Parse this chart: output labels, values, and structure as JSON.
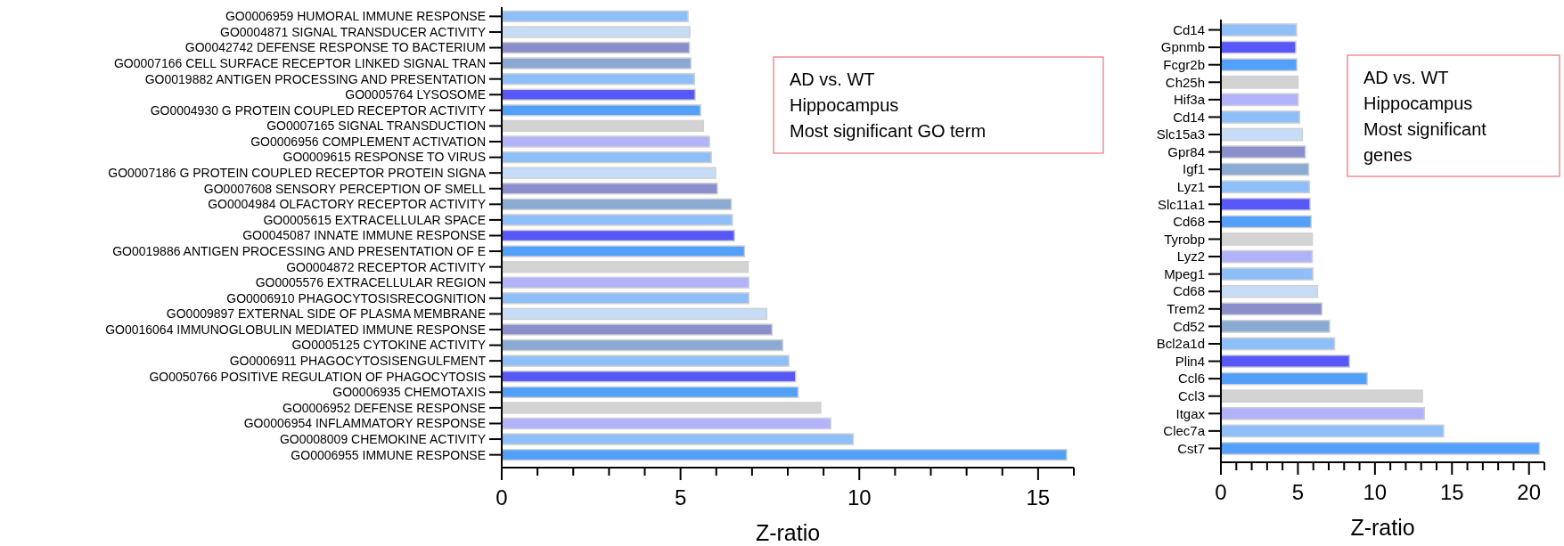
{
  "chart_data": [
    {
      "type": "bar",
      "orientation": "horizontal",
      "xlabel": "Z-ratio",
      "categories": [
        "GO0006959 HUMORAL IMMUNE RESPONSE",
        "GO0004871 SIGNAL TRANSDUCER ACTIVITY",
        "GO0042742 DEFENSE RESPONSE TO BACTERIUM",
        "GO0007166 CELL SURFACE RECEPTOR LINKED SIGNAL TRAN",
        "GO0019882 ANTIGEN PROCESSING AND PRESENTATION",
        "GO0005764 LYSOSOME",
        "GO0004930 G PROTEIN COUPLED RECEPTOR ACTIVITY",
        "GO0007165 SIGNAL TRANSDUCTION",
        "GO0006956 COMPLEMENT ACTIVATION",
        "GO0009615 RESPONSE TO VIRUS",
        "GO0007186 G PROTEIN COUPLED RECEPTOR PROTEIN SIGNA",
        "GO0007608 SENSORY PERCEPTION OF SMELL",
        "GO0004984 OLFACTORY RECEPTOR ACTIVITY",
        "GO0005615 EXTRACELLULAR SPACE",
        "GO0045087 INNATE IMMUNE RESPONSE",
        "GO0019886 ANTIGEN PROCESSING AND PRESENTATION OF E",
        "GO0004872 RECEPTOR ACTIVITY",
        "GO0005576 EXTRACELLULAR REGION",
        "GO0006910 PHAGOCYTOSISRECOGNITION",
        "GO0009897 EXTERNAL SIDE OF PLASMA MEMBRANE",
        "GO0016064 IMMUNOGLOBULIN MEDIATED IMMUNE RESPONSE",
        "GO0005125 CYTOKINE ACTIVITY",
        "GO0006911 PHAGOCYTOSISENGULFMENT",
        "GO0050766 POSITIVE REGULATION OF PHAGOCYTOSIS",
        "GO0006935 CHEMOTAXIS",
        "GO0006952 DEFENSE RESPONSE",
        "GO0006954 INFLAMMATORY RESPONSE",
        "GO0008009 CHEMOKINE ACTIVITY",
        "GO0006955 IMMUNE RESPONSE"
      ],
      "values": [
        5.21,
        5.26,
        5.25,
        5.29,
        5.39,
        5.41,
        5.56,
        5.64,
        5.81,
        5.86,
        5.98,
        6.03,
        6.42,
        6.45,
        6.51,
        6.79,
        6.89,
        6.91,
        6.91,
        7.41,
        7.56,
        7.86,
        8.03,
        8.22,
        8.29,
        8.92,
        9.2,
        9.83,
        15.8
      ],
      "colors": [
        "#8fbff9",
        "#c6dcf7",
        "#8a8fcc",
        "#8aaad4",
        "#8fbff9",
        "#5858f8",
        "#52a0f9",
        "#d3d3d3",
        "#b3b3fc",
        "#8fbff9",
        "#c6dcf7",
        "#8a8fcc",
        "#8aaad4",
        "#8fbff9",
        "#5858f8",
        "#52a0f9",
        "#d3d3d3",
        "#b3b3fc",
        "#8fbff9",
        "#c6dcf7",
        "#8a8fcc",
        "#8aaad4",
        "#8fbff9",
        "#5858f8",
        "#52a0f9",
        "#d3d3d3",
        "#b3b3fc",
        "#8fbff9",
        "#52a0f9"
      ],
      "xlim": [
        0,
        16
      ],
      "xticks": [
        0,
        {
          "value": 1,
          "label": null
        },
        {
          "value": 2,
          "label": null
        },
        {
          "value": 3,
          "label": null
        },
        {
          "value": 4,
          "label": null
        },
        5,
        {
          "value": 6,
          "label": null
        },
        {
          "value": 7,
          "label": null
        },
        {
          "value": 8,
          "label": null
        },
        {
          "value": 9,
          "label": null
        },
        10,
        {
          "value": 11,
          "label": null
        },
        {
          "value": 12,
          "label": null
        },
        {
          "value": 13,
          "label": null
        },
        {
          "value": 14,
          "label": null
        },
        15,
        {
          "value": 16,
          "label": null
        }
      ],
      "grid": false,
      "annotations": [
        "AD vs. WT",
        "Hippocampus",
        "Most significant GO term"
      ]
    },
    {
      "type": "bar",
      "orientation": "horizontal",
      "xlabel": "Z-ratio",
      "categories": [
        "Cd14",
        "Gpnmb",
        "Fcgr2b",
        "Ch25h",
        "Hif3a",
        "Cd14",
        "Slc15a3",
        "Gpr84",
        "Igf1",
        "Lyz1",
        "Slc11a1",
        "Cd68",
        "Tyrobp",
        "Lyz2",
        "Mpeg1",
        "Cd68",
        "Trem2",
        "Cd52",
        "Bcl2a1d",
        "Plin4",
        "Ccl6",
        "Ccl3",
        "Itgax",
        "Clec7a",
        "Cst7"
      ],
      "values": [
        4.91,
        4.86,
        4.93,
        5.0,
        5.02,
        5.11,
        5.29,
        5.48,
        5.7,
        5.75,
        5.79,
        5.86,
        5.93,
        5.93,
        5.97,
        6.27,
        6.56,
        7.06,
        7.38,
        8.35,
        9.5,
        13.08,
        13.21,
        14.46,
        20.68
      ],
      "colors": [
        "#8fbff9",
        "#5858f8",
        "#52a0f9",
        "#d3d3d3",
        "#b3b3fc",
        "#8fbff9",
        "#c6dcf7",
        "#8a8fcc",
        "#8aaad4",
        "#8fbff9",
        "#5858f8",
        "#52a0f9",
        "#d3d3d3",
        "#b3b3fc",
        "#8fbff9",
        "#c6dcf7",
        "#8a8fcc",
        "#8aaad4",
        "#8fbff9",
        "#5858f8",
        "#52a0f9",
        "#d3d3d3",
        "#b3b3fc",
        "#8fbff9",
        "#52a0f9"
      ],
      "xlim": [
        0,
        21
      ],
      "xticks": [
        0,
        {
          "value": 1,
          "label": null
        },
        {
          "value": 2,
          "label": null
        },
        {
          "value": 3,
          "label": null
        },
        {
          "value": 4,
          "label": null
        },
        5,
        {
          "value": 6,
          "label": null
        },
        {
          "value": 7,
          "label": null
        },
        {
          "value": 8,
          "label": null
        },
        {
          "value": 9,
          "label": null
        },
        10,
        {
          "value": 11,
          "label": null
        },
        {
          "value": 12,
          "label": null
        },
        {
          "value": 13,
          "label": null
        },
        {
          "value": 14,
          "label": null
        },
        15,
        {
          "value": 16,
          "label": null
        },
        {
          "value": 17,
          "label": null
        },
        {
          "value": 18,
          "label": null
        },
        {
          "value": 19,
          "label": null
        },
        20,
        {
          "value": 21,
          "label": null
        }
      ],
      "grid": false,
      "annotations": [
        "AD vs. WT",
        "Hippocampus",
        "Most significant genes"
      ]
    }
  ]
}
